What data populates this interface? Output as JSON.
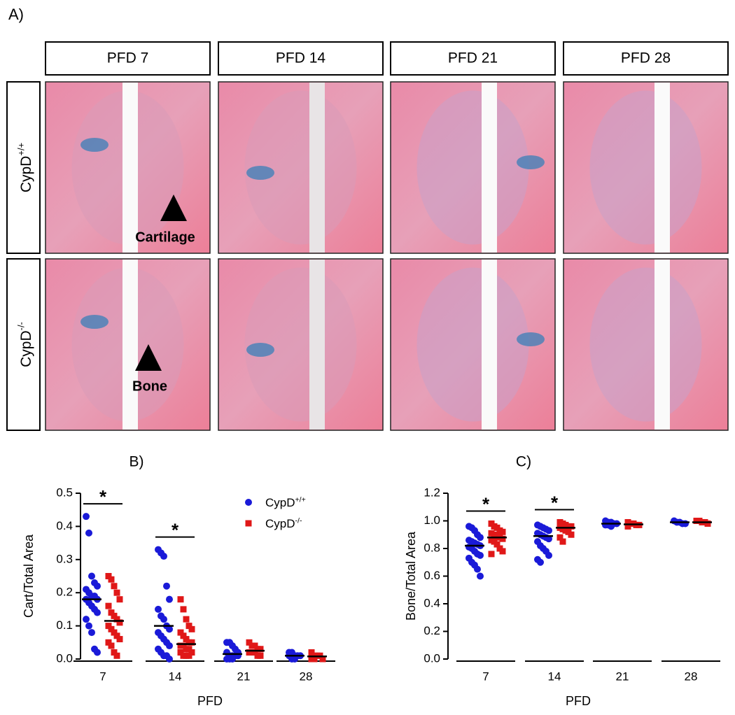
{
  "figure": {
    "panel_label": "A)",
    "columns": [
      "PFD 7",
      "PFD 14",
      "PFD 21",
      "PFD 28"
    ],
    "rows": [
      "CypD+/+",
      "CypD-/-"
    ],
    "annotations": [
      "Cartilage",
      "Bone"
    ]
  },
  "chart_data": [
    {
      "type": "strip",
      "title": "B)",
      "xlabel": "PFD",
      "ylabel": "Cart/Total Area",
      "categories": [
        "7",
        "14",
        "21",
        "28"
      ],
      "ylim": [
        0,
        0.5
      ],
      "yticks": [
        {
          "value": 0,
          "label": "0.0"
        },
        0.1,
        0.2,
        0.3,
        0.4,
        0.5
      ],
      "legend": "upper right",
      "series": [
        {
          "name": "CypD+/+",
          "color": "#1a1ad8",
          "marker": "circle",
          "values": [
            [
              0.43,
              0.38,
              0.25,
              0.23,
              0.22,
              0.21,
              0.2,
              0.19,
              0.19,
              0.18,
              0.18,
              0.17,
              0.16,
              0.15,
              0.14,
              0.12,
              0.1,
              0.08,
              0.03,
              0.02
            ],
            [
              0.33,
              0.32,
              0.31,
              0.22,
              0.18,
              0.15,
              0.13,
              0.12,
              0.1,
              0.09,
              0.08,
              0.07,
              0.06,
              0.05,
              0.04,
              0.03,
              0.02,
              0.01,
              0.01,
              0
            ],
            [
              0.05,
              0.05,
              0.04,
              0.03,
              0.02,
              0.02,
              0.01,
              0.01,
              0.01,
              0.01,
              0,
              0,
              0
            ],
            [
              0.02,
              0.02,
              0.01,
              0.01,
              0.01,
              0.01,
              0,
              0
            ]
          ],
          "means": [
            0.18,
            0.1,
            0.015,
            0.01
          ]
        },
        {
          "name": "CypD-/-",
          "color": "#e01818",
          "marker": "square",
          "values": [
            [
              0.25,
              0.24,
              0.22,
              0.2,
              0.18,
              0.16,
              0.14,
              0.13,
              0.12,
              0.11,
              0.1,
              0.09,
              0.08,
              0.07,
              0.06,
              0.05,
              0.04,
              0.02,
              0.01
            ],
            [
              0.18,
              0.15,
              0.12,
              0.1,
              0.09,
              0.08,
              0.07,
              0.06,
              0.05,
              0.05,
              0.04,
              0.04,
              0.03,
              0.03,
              0.02,
              0.02,
              0.01,
              0.01,
              0.01
            ],
            [
              0.05,
              0.04,
              0.04,
              0.03,
              0.03,
              0.02,
              0.02,
              0.02,
              0.01,
              0.01
            ],
            [
              0.02,
              0.01,
              0.01,
              0.01,
              0,
              0,
              0
            ]
          ],
          "means": [
            0.115,
            0.045,
            0.025,
            0.008
          ]
        }
      ],
      "significance": [
        {
          "label": "*",
          "category": "7"
        },
        {
          "label": "*",
          "category": "14"
        }
      ]
    },
    {
      "type": "strip",
      "title": "C)",
      "xlabel": "PFD",
      "ylabel": "Bone/Total Area",
      "categories": [
        "7",
        "14",
        "21",
        "28"
      ],
      "ylim": [
        0,
        1.2
      ],
      "yticks": [
        {
          "value": 0,
          "label": "0.0"
        },
        0.2,
        0.4,
        0.6,
        0.8,
        {
          "value": 1,
          "label": "1.0"
        },
        1.2
      ],
      "series": [
        {
          "name": "CypD+/+",
          "color": "#1a1ad8",
          "marker": "circle",
          "values": [
            [
              0.96,
              0.95,
              0.93,
              0.9,
              0.88,
              0.86,
              0.85,
              0.84,
              0.83,
              0.82,
              0.81,
              0.8,
              0.78,
              0.76,
              0.75,
              0.73,
              0.7,
              0.68,
              0.65,
              0.6
            ],
            [
              0.97,
              0.96,
              0.95,
              0.94,
              0.93,
              0.91,
              0.9,
              0.89,
              0.88,
              0.87,
              0.85,
              0.82,
              0.8,
              0.78,
              0.75,
              0.72,
              0.7
            ],
            [
              1,
              0.99,
              0.99,
              0.98,
              0.98,
              0.97,
              0.97,
              0.96
            ],
            [
              1,
              0.99,
              0.99,
              0.98,
              0.98
            ]
          ],
          "means": [
            0.82,
            0.89,
            0.98,
            0.99
          ]
        },
        {
          "name": "CypD-/-",
          "color": "#e01818",
          "marker": "square",
          "values": [
            [
              0.98,
              0.96,
              0.95,
              0.93,
              0.92,
              0.91,
              0.9,
              0.89,
              0.88,
              0.87,
              0.86,
              0.85,
              0.83,
              0.8,
              0.78,
              0.76
            ],
            [
              0.99,
              0.98,
              0.97,
              0.96,
              0.96,
              0.95,
              0.94,
              0.93,
              0.92,
              0.9,
              0.88,
              0.85
            ],
            [
              0.99,
              0.98,
              0.98,
              0.97,
              0.97,
              0.96
            ],
            [
              1,
              1,
              0.99,
              0.99,
              0.98
            ]
          ],
          "means": [
            0.88,
            0.95,
            0.975,
            0.99
          ]
        }
      ],
      "significance": [
        {
          "label": "*",
          "category": "7"
        },
        {
          "label": "*",
          "category": "14"
        }
      ]
    }
  ]
}
